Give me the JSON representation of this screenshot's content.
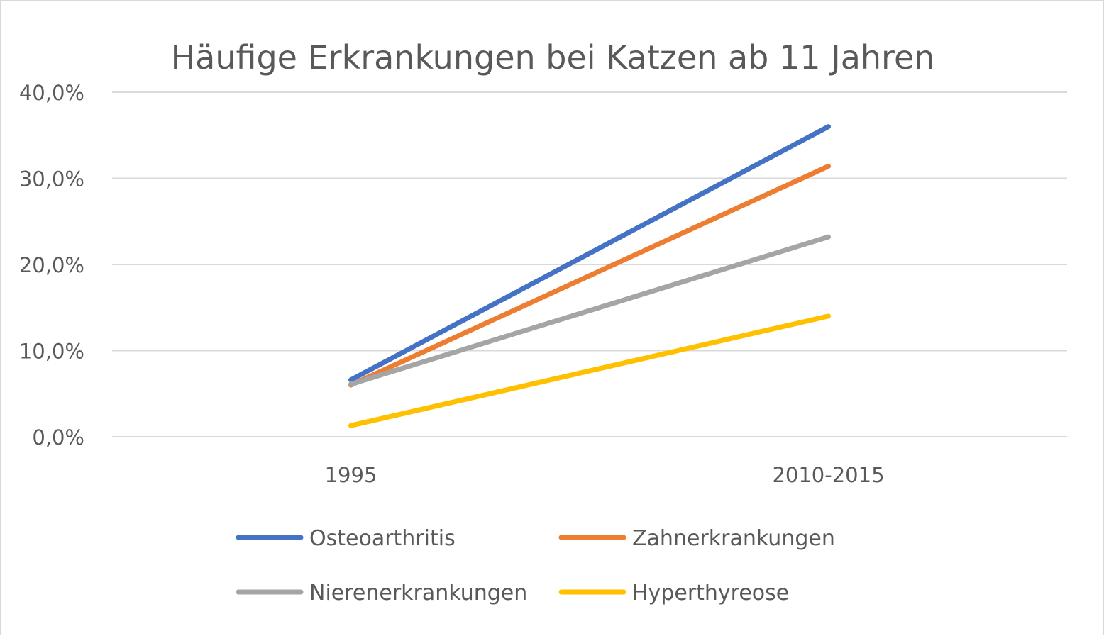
{
  "chart_data": {
    "type": "line",
    "title": "Häufige Erkrankungen bei Katzen ab 11 Jahren",
    "xlabel": "",
    "ylabel": "",
    "categories": [
      "1995",
      "2010-2015"
    ],
    "ylim": [
      0,
      40
    ],
    "yticks": [
      0,
      10,
      20,
      30,
      40
    ],
    "ytick_labels": [
      "0,0%",
      "10,0%",
      "20,0%",
      "30,0%",
      "40,0%"
    ],
    "grid": "horizontal",
    "legend_position": "bottom",
    "series": [
      {
        "name": "Osteoarthritis",
        "color": "#4472C4",
        "values": [
          6.6,
          36.0
        ]
      },
      {
        "name": "Zahnerkrankungen",
        "color": "#ED7D31",
        "values": [
          6.0,
          31.4
        ]
      },
      {
        "name": "Nierenerkrankungen",
        "color": "#A5A5A5",
        "values": [
          6.1,
          23.2
        ]
      },
      {
        "name": "Hyperthyreose",
        "color": "#FFC000",
        "values": [
          1.3,
          14.0
        ]
      }
    ]
  }
}
